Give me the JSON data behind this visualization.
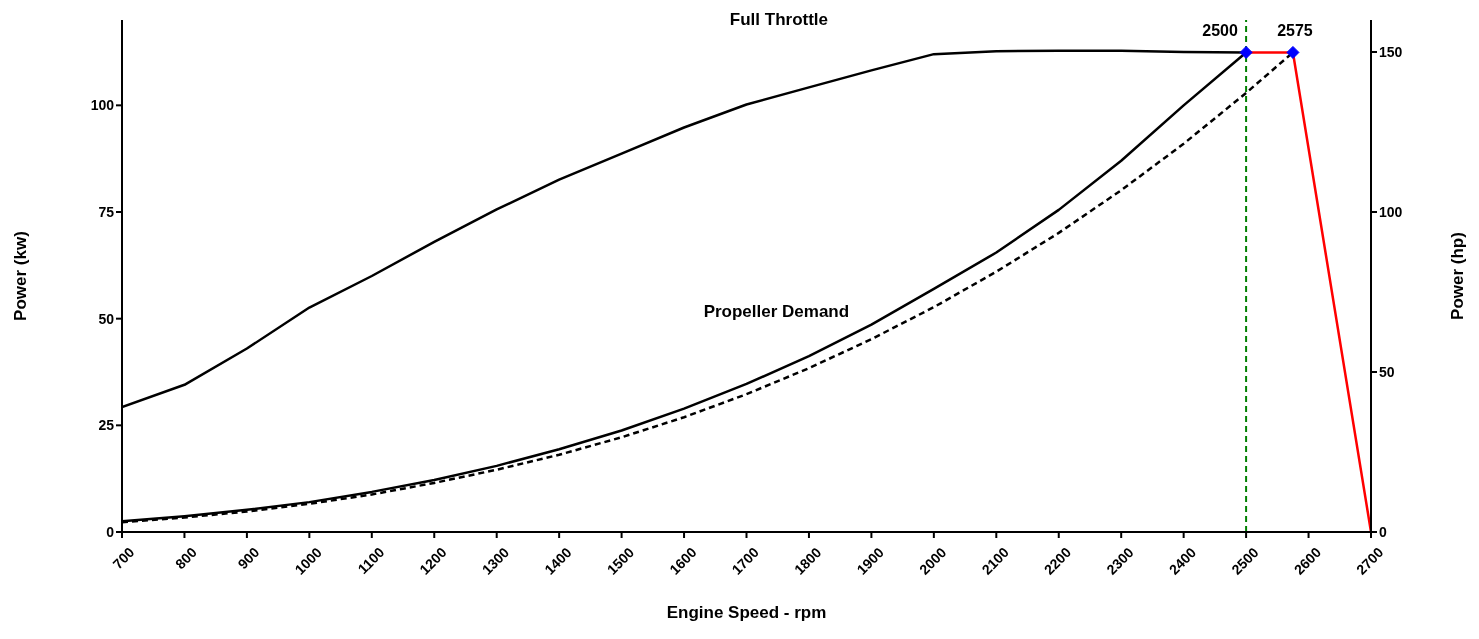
{
  "chart_data": {
    "type": "line",
    "xlabel": "Engine Speed - rpm",
    "ylabel": "Power (kw)",
    "y2label": "Power (hp)",
    "xlim": [
      700,
      2700
    ],
    "xticks": [
      700,
      800,
      900,
      1000,
      1100,
      1200,
      1300,
      1400,
      1500,
      1600,
      1700,
      1800,
      1900,
      2000,
      2100,
      2200,
      2300,
      2400,
      2500,
      2600,
      2700
    ],
    "ylim": [
      0,
      120
    ],
    "yticks": [
      0,
      25,
      50,
      75,
      100
    ],
    "y2lim": [
      0,
      160
    ],
    "y2ticks": [
      0,
      50,
      100,
      150
    ],
    "grid": false,
    "legend": false,
    "series": [
      {
        "name": "Full Throttle",
        "color": "#000000",
        "line_style": "solid",
        "marker": "none",
        "x": [
          700,
          800,
          900,
          1000,
          1100,
          1200,
          1300,
          1400,
          1500,
          1600,
          1700,
          1800,
          1900,
          2000,
          2100,
          2200,
          2300,
          2400,
          2500
        ],
        "values": [
          29.3,
          34.5,
          43,
          52.6,
          60,
          68,
          75.6,
          82.6,
          88.7,
          94.8,
          100.2,
          104.2,
          108.2,
          112,
          112.7,
          112.8,
          112.8,
          112.5,
          112.4
        ]
      },
      {
        "name": "Propeller Demand",
        "color": "#000000",
        "line_style": "solid",
        "marker": "none",
        "x": [
          700,
          800,
          900,
          1000,
          1100,
          1200,
          1300,
          1400,
          1500,
          1600,
          1700,
          1800,
          1900,
          2000,
          2100,
          2200,
          2300,
          2400,
          2500
        ],
        "values": [
          2.5,
          3.7,
          5.2,
          7,
          9.4,
          12.2,
          15.5,
          19.4,
          23.8,
          28.9,
          34.7,
          41.2,
          48.6,
          57,
          65.5,
          75.5,
          87,
          100,
          112.4
        ]
      },
      {
        "color": "#000000",
        "line_style": "dashed",
        "marker": "none",
        "x": [
          700,
          800,
          900,
          1000,
          1100,
          1200,
          1300,
          1400,
          1500,
          1600,
          1700,
          1800,
          1900,
          2000,
          2100,
          2200,
          2300,
          2400,
          2500,
          2575
        ],
        "values": [
          2.3,
          3.4,
          4.8,
          6.6,
          8.8,
          11.5,
          14.6,
          18.1,
          22.2,
          26.9,
          32.3,
          38.4,
          45.2,
          52.7,
          61,
          70.1,
          80.1,
          91,
          102.9,
          112.4
        ]
      },
      {
        "color": "#ff0000",
        "line_style": "solid",
        "marker": "none",
        "x": [
          2500,
          2575,
          2700
        ],
        "values": [
          112.4,
          112.4,
          0
        ]
      },
      {
        "type": "scatter",
        "color": "#0000ff",
        "marker": "diamond",
        "x": [
          2500,
          2575
        ],
        "values": [
          112.4,
          112.4
        ]
      }
    ],
    "ref_lines": [
      {
        "axis": "x",
        "value": 2500,
        "color": "#008000",
        "line_style": "dashed"
      }
    ],
    "annotations": [
      {
        "text": "2500",
        "x": 2500,
        "y": 112.4
      },
      {
        "text": "2575",
        "x": 2575,
        "y": 112.4
      }
    ]
  }
}
